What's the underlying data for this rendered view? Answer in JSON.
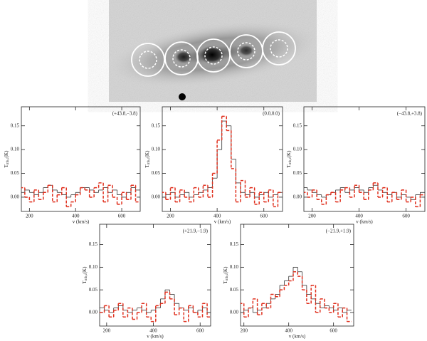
{
  "chart_data": [
    {
      "type": "line",
      "annotation": "(+43.8,−3.8)",
      "x_label": "v (km/s)",
      "y_label": "T",
      "y_label_subscript": "mb,c",
      "y_label_unit": "(K)",
      "xlim": [
        165,
        680
      ],
      "ylim": [
        -0.03,
        0.19
      ],
      "xticks": [
        200,
        400,
        600
      ],
      "yticks": [
        {
          "value": 0,
          "label": "0.00"
        },
        {
          "value": 0.05,
          "label": "0.05"
        },
        {
          "value": 0.1,
          "label": "0.10"
        },
        {
          "value": 0.15,
          "label": "0.15"
        }
      ],
      "x": [
        170,
        190,
        210,
        230,
        250,
        270,
        290,
        310,
        330,
        350,
        370,
        390,
        410,
        430,
        450,
        470,
        490,
        510,
        530,
        550,
        570,
        590,
        610,
        630,
        650,
        670
      ],
      "series": [
        {
          "color": "#333333",
          "style": "solid",
          "values": [
            0.01,
            0.015,
            0.01,
            0.005,
            0.01,
            0.02,
            0.025,
            0.015,
            0.01,
            0.005,
            0.0,
            0.005,
            0.01,
            0.02,
            0.02,
            0.015,
            0.01,
            0.015,
            0.02,
            0.01,
            0.015,
            0.005,
            0.0,
            0.01,
            0.02,
            0.015
          ]
        },
        {
          "color": "#e0301e",
          "style": "dashed",
          "values": [
            0.02,
            0.0,
            -0.01,
            0.015,
            -0.005,
            0.01,
            0.025,
            -0.01,
            0.005,
            0.02,
            -0.02,
            -0.01,
            0.005,
            0.02,
            0.015,
            0.0,
            0.02,
            0.03,
            -0.01,
            0.025,
            0.0,
            -0.015,
            0.01,
            -0.005,
            0.025,
            -0.01
          ]
        }
      ]
    },
    {
      "type": "line",
      "annotation": "(0.0,0.0)",
      "x_label": "v (km/s)",
      "y_label": "T",
      "y_label_subscript": "mb,c",
      "y_label_unit": "(K)",
      "xlim": [
        165,
        680
      ],
      "ylim": [
        -0.03,
        0.19
      ],
      "xticks": [
        200,
        400,
        600
      ],
      "yticks": [
        {
          "value": 0,
          "label": "0.00"
        },
        {
          "value": 0.05,
          "label": "0.05"
        },
        {
          "value": 0.1,
          "label": "0.10"
        },
        {
          "value": 0.15,
          "label": "0.15"
        }
      ],
      "x": [
        170,
        190,
        210,
        230,
        250,
        270,
        290,
        310,
        330,
        350,
        370,
        390,
        410,
        430,
        450,
        470,
        490,
        510,
        530,
        550,
        570,
        590,
        610,
        630,
        650,
        670
      ],
      "series": [
        {
          "color": "#333333",
          "style": "solid",
          "values": [
            0.0,
            0.005,
            0.01,
            0.0,
            0.005,
            0.01,
            0.0,
            0.005,
            0.01,
            0.015,
            0.02,
            0.04,
            0.1,
            0.16,
            0.15,
            0.08,
            0.03,
            0.01,
            0.005,
            0.01,
            0.0,
            0.005,
            0.01,
            0.0,
            0.005,
            0.01
          ]
        },
        {
          "color": "#e0301e",
          "style": "dashed",
          "values": [
            0.01,
            -0.005,
            0.02,
            -0.01,
            0.015,
            0.0,
            -0.01,
            0.02,
            0.0,
            0.025,
            0.0,
            0.05,
            0.12,
            0.17,
            0.14,
            0.06,
            -0.01,
            0.035,
            0.0,
            0.02,
            -0.015,
            0.01,
            -0.01,
            0.015,
            -0.02,
            0.01
          ]
        }
      ]
    },
    {
      "type": "line",
      "annotation": "(−43.8,+3.8)",
      "x_label": "v (km/s)",
      "y_label": "T",
      "y_label_subscript": "mb,c",
      "y_label_unit": "(K)",
      "xlim": [
        165,
        680
      ],
      "ylim": [
        -0.03,
        0.19
      ],
      "xticks": [
        200,
        400,
        600
      ],
      "yticks": [
        {
          "value": 0,
          "label": "0.00"
        },
        {
          "value": 0.05,
          "label": "0.05"
        },
        {
          "value": 0.1,
          "label": "0.10"
        },
        {
          "value": 0.15,
          "label": "0.15"
        }
      ],
      "x": [
        170,
        190,
        210,
        230,
        250,
        270,
        290,
        310,
        330,
        350,
        370,
        390,
        410,
        430,
        450,
        470,
        490,
        510,
        530,
        550,
        570,
        590,
        610,
        630,
        650,
        670
      ],
      "series": [
        {
          "color": "#333333",
          "style": "solid",
          "values": [
            0.02,
            0.015,
            0.01,
            0.005,
            0.0,
            0.005,
            0.01,
            0.015,
            0.02,
            0.01,
            0.015,
            0.02,
            0.015,
            0.01,
            0.02,
            0.025,
            0.015,
            0.01,
            0.005,
            0.01,
            0.0,
            0.005,
            0.0,
            -0.005,
            0.005,
            0.01
          ]
        },
        {
          "color": "#e0301e",
          "style": "dashed",
          "values": [
            0.01,
            0.0,
            0.015,
            -0.005,
            -0.015,
            0.005,
            0.01,
            -0.01,
            0.015,
            0.02,
            0.0,
            0.025,
            0.01,
            -0.005,
            0.015,
            0.03,
            0.0,
            0.02,
            -0.01,
            0.01,
            -0.005,
            0.015,
            -0.01,
            0.0,
            -0.02,
            0.005
          ]
        }
      ]
    },
    {
      "type": "line",
      "annotation": "(+21.9,−1.9)",
      "x_label": "v (km/s)",
      "y_label": "T",
      "y_label_subscript": "mb,c",
      "y_label_unit": "(K)",
      "xlim": [
        170,
        645
      ],
      "ylim": [
        -0.03,
        0.195
      ],
      "xticks": [
        200,
        400,
        600
      ],
      "yticks": [
        {
          "value": 0,
          "label": "0.00"
        },
        {
          "value": 0.05,
          "label": "0.05"
        },
        {
          "value": 0.1,
          "label": "0.10"
        },
        {
          "value": 0.15,
          "label": "0.15"
        }
      ],
      "x": [
        180,
        200,
        220,
        240,
        260,
        280,
        300,
        320,
        340,
        360,
        380,
        400,
        420,
        440,
        460,
        480,
        500,
        520,
        540,
        560,
        580,
        600,
        620,
        640
      ],
      "series": [
        {
          "color": "#333333",
          "style": "solid",
          "values": [
            0.01,
            0.005,
            0.0,
            0.01,
            0.015,
            0.005,
            0.0,
            0.005,
            0.01,
            0.005,
            0.0,
            0.005,
            0.01,
            0.03,
            0.05,
            0.04,
            0.02,
            0.01,
            0.005,
            0.01,
            0.0,
            0.005,
            0.01,
            0.0
          ]
        },
        {
          "color": "#e0301e",
          "style": "dashed",
          "values": [
            0.0,
            0.015,
            -0.01,
            0.005,
            0.02,
            -0.01,
            0.01,
            -0.015,
            0.0,
            0.02,
            -0.01,
            -0.02,
            0.015,
            0.02,
            0.045,
            0.03,
            -0.005,
            0.01,
            -0.02,
            0.015,
            0.0,
            -0.01,
            0.02,
            -0.01
          ]
        }
      ]
    },
    {
      "type": "line",
      "annotation": "(−21.9,+1.9)",
      "x_label": "v (km/s)",
      "y_label": "T",
      "y_label_subscript": "mb,c",
      "y_label_unit": "(K)",
      "xlim": [
        185,
        690
      ],
      "ylim": [
        -0.03,
        0.195
      ],
      "xticks": [
        200,
        400,
        600
      ],
      "yticks": [
        {
          "value": 0,
          "label": "0.00"
        },
        {
          "value": 0.05,
          "label": "0.05"
        },
        {
          "value": 0.1,
          "label": "0.10"
        },
        {
          "value": 0.15,
          "label": "0.15"
        }
      ],
      "x": [
        190,
        210,
        230,
        250,
        270,
        290,
        310,
        330,
        350,
        370,
        390,
        410,
        430,
        450,
        470,
        490,
        510,
        530,
        550,
        570,
        590,
        610,
        630,
        650,
        670
      ],
      "series": [
        {
          "color": "#333333",
          "style": "solid",
          "values": [
            0.0,
            0.005,
            0.01,
            0.0,
            0.005,
            0.01,
            0.02,
            0.03,
            0.04,
            0.06,
            0.07,
            0.08,
            0.1,
            0.09,
            0.06,
            0.04,
            0.03,
            0.02,
            0.01,
            0.015,
            0.01,
            0.005,
            0.01,
            0.0,
            0.005
          ]
        },
        {
          "color": "#e0301e",
          "style": "dashed",
          "values": [
            0.02,
            -0.01,
            0.01,
            0.03,
            -0.005,
            0.02,
            0.01,
            0.04,
            0.035,
            0.05,
            0.06,
            0.07,
            0.09,
            0.08,
            0.05,
            0.02,
            0.06,
            0.0,
            0.03,
            0.01,
            0.0,
            0.02,
            -0.01,
            0.01,
            -0.02
          ]
        }
      ]
    }
  ]
}
